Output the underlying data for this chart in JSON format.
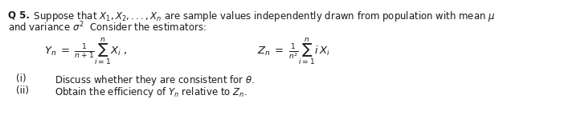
{
  "background_color": "#ffffff",
  "figsize": [
    7.02,
    1.64
  ],
  "dpi": 100,
  "line1_bold": "Q 5.",
  "line1_rest": " Suppose that $X_1, X_2, ..., X_n$ are sample values independently drawn from population with mean $\\mu$",
  "line2": "and variance $\\sigma^2$  Consider the estimators:",
  "formula_Yn": "$Y_n \\; = \\; \\frac{1}{n+1}\\sum_{i=1}^{n} X_i$ ,",
  "formula_Zn": "$Z_n \\; = \\; \\frac{1}{n^2}\\sum_{i=1}^{n} i\\, X_i$",
  "item_i_label": "(i)",
  "item_i_text": "Discuss whether they are consistent for $\\theta$.",
  "item_ii_label": "(ii)",
  "item_ii_text": "Obtain the efficiency of $Y_n$ relative to $Z_n$.",
  "text_color": "#1a1a1a",
  "font_size_body": 8.5,
  "font_size_formula": 9.5,
  "font_size_items": 8.5
}
